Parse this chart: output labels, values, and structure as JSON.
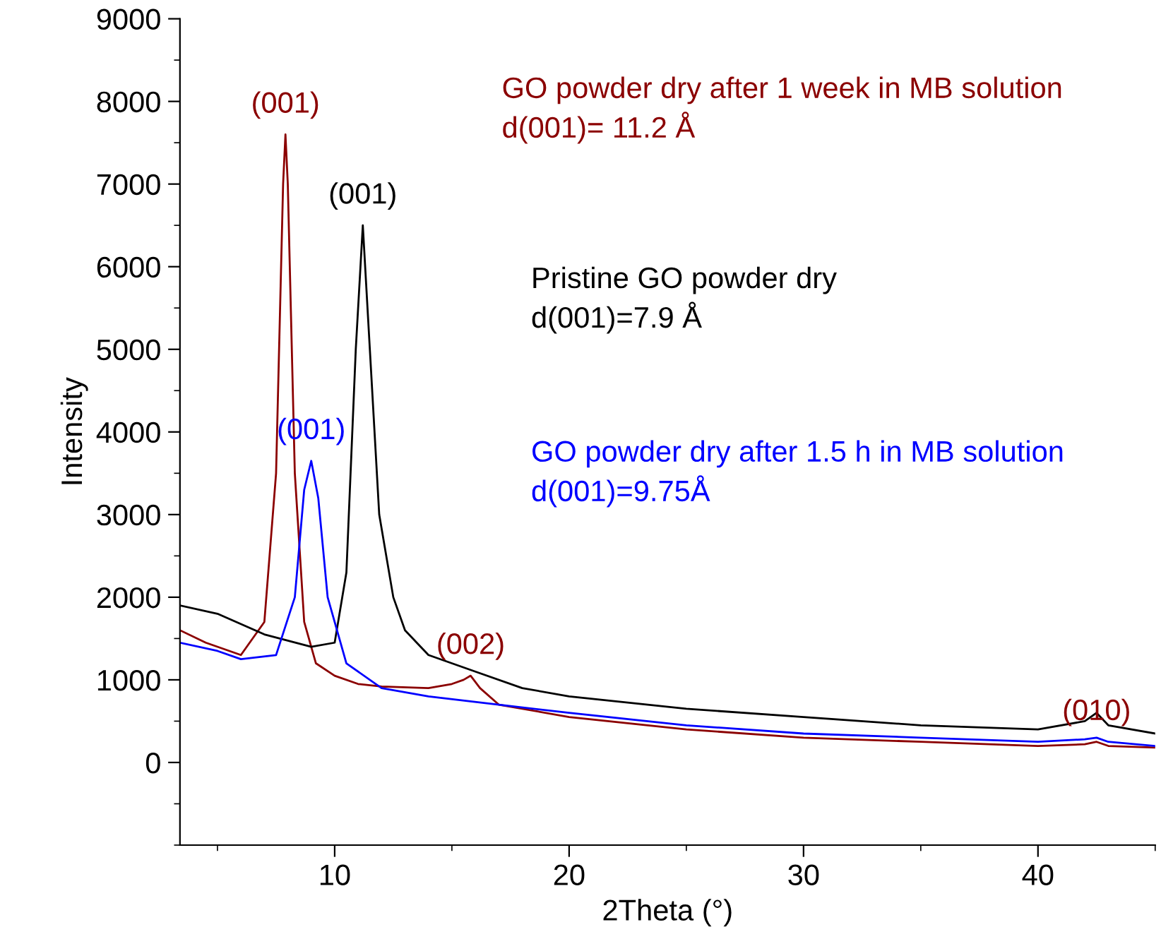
{
  "chart_data": {
    "type": "line",
    "xlabel": "2Theta (°)",
    "ylabel": "Intensity",
    "xlim": [
      3.4,
      45
    ],
    "ylim": [
      -1000,
      9000
    ],
    "xticks": [
      10,
      20,
      30,
      40
    ],
    "yticks": [
      0,
      1000,
      2000,
      3000,
      4000,
      5000,
      6000,
      7000,
      8000,
      9000
    ],
    "grid": false,
    "legend": false,
    "marker": "none",
    "line_style": "solid",
    "series": [
      {
        "name": "GO powder dry after 1 week in MB solution\nd(001)= 11.2 Å",
        "color": "#8b0000",
        "x": [
          3.4,
          4.5,
          6,
          7,
          7.5,
          7.8,
          7.9,
          8.0,
          8.3,
          8.7,
          9.2,
          10,
          11,
          12,
          14,
          15,
          15.5,
          15.8,
          16.2,
          17,
          20,
          25,
          30,
          35,
          40,
          42,
          42.5,
          43,
          45
        ],
        "values": [
          1600,
          1450,
          1300,
          1700,
          3500,
          7000,
          7600,
          7000,
          3500,
          1700,
          1200,
          1050,
          950,
          920,
          900,
          950,
          1000,
          1050,
          900,
          700,
          550,
          400,
          300,
          250,
          200,
          220,
          250,
          200,
          180
        ]
      },
      {
        "name": "Pristine GO powder dry\nd(001)=7.9 Å",
        "color": "#000000",
        "x": [
          3.4,
          5,
          7,
          9,
          10,
          10.5,
          10.9,
          11.2,
          11.5,
          11.9,
          12.5,
          13,
          14,
          16,
          18,
          20,
          25,
          30,
          35,
          40,
          42,
          42.5,
          43,
          45
        ],
        "values": [
          1900,
          1800,
          1550,
          1400,
          1450,
          2300,
          5000,
          6500,
          5000,
          3000,
          2000,
          1600,
          1300,
          1100,
          900,
          800,
          650,
          550,
          450,
          400,
          500,
          600,
          450,
          350
        ]
      },
      {
        "name": "GO powder dry after 1.5 h in MB solution\nd(001)=9.75Å",
        "color": "#0000ff",
        "x": [
          3.4,
          5,
          6,
          7.5,
          8.3,
          8.7,
          9.0,
          9.3,
          9.7,
          10.5,
          12,
          14,
          17,
          20,
          25,
          30,
          35,
          40,
          42,
          42.5,
          43,
          45
        ],
        "values": [
          1450,
          1350,
          1250,
          1300,
          2000,
          3300,
          3650,
          3200,
          2000,
          1200,
          900,
          800,
          700,
          600,
          450,
          350,
          300,
          250,
          280,
          300,
          250,
          200
        ]
      }
    ],
    "annotations": [
      {
        "text": "(001)",
        "x": 7.9,
        "y": 7600
      },
      {
        "text": "(001)",
        "x": 11.2,
        "y": 6500
      },
      {
        "text": "(001)",
        "x": 9.0,
        "y": 3650
      },
      {
        "text": "(002)",
        "x": 15.8,
        "y": 1050
      },
      {
        "text": "(010)",
        "x": 42.5,
        "y": 250
      }
    ]
  }
}
